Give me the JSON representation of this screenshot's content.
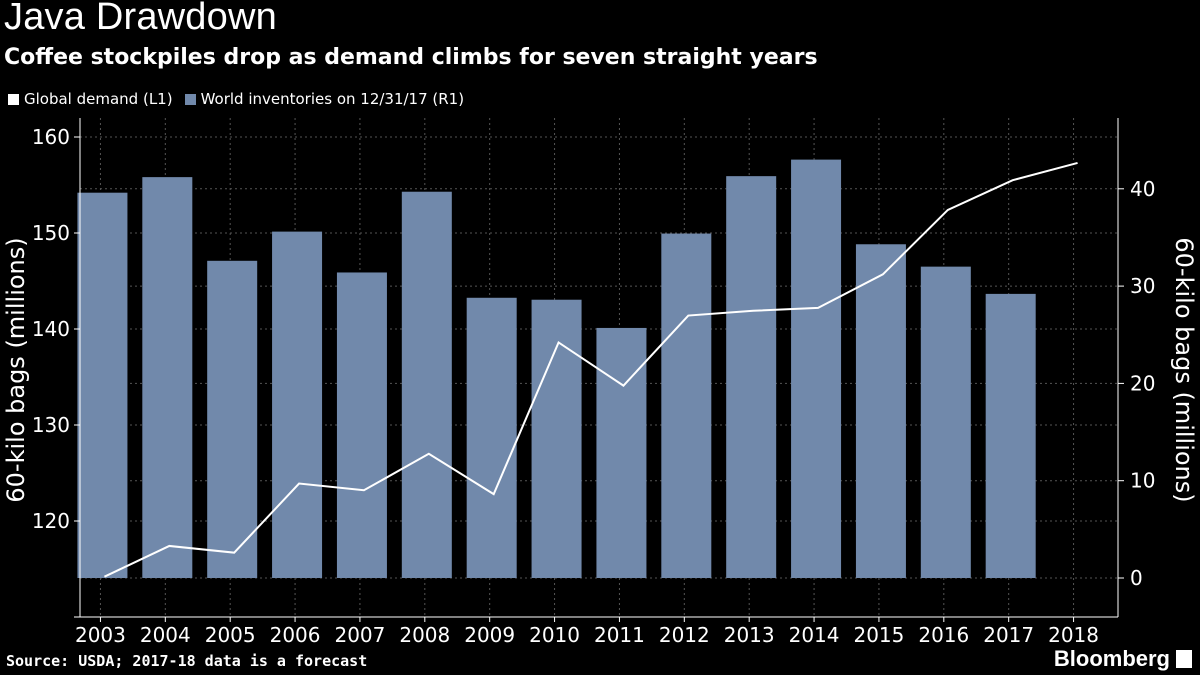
{
  "header": {
    "title": "Java Drawdown",
    "subtitle": "Coffee stockpiles drop as demand climbs for seven straight years"
  },
  "legend": [
    {
      "label": "Global demand (L1)",
      "color": "#ffffff"
    },
    {
      "label": "World inventories on 12/31/17 (R1)",
      "color": "#7189ab"
    }
  ],
  "footer": {
    "source": "Source: USDA; 2017-18 data is a forecast",
    "brand": "Bloomberg"
  },
  "chart_data": {
    "type": "bar+line",
    "title": "Java Drawdown",
    "categories": [
      "2003",
      "2004",
      "2005",
      "2006",
      "2007",
      "2008",
      "2009",
      "2010",
      "2011",
      "2012",
      "2013",
      "2014",
      "2015",
      "2016",
      "2017",
      "2018"
    ],
    "left_axis": {
      "label": "60-kilo bags (millions)",
      "ticks": [
        120,
        130,
        140,
        150,
        160
      ],
      "ylim": [
        114.2,
        160
      ]
    },
    "right_axis": {
      "label": "60-kilo bags (millions)",
      "ticks": [
        0,
        10,
        20,
        30,
        40
      ],
      "ylim": [
        0,
        45.5
      ]
    },
    "series": [
      {
        "name": "World inventories on 12/31/17 (R1)",
        "type": "bar",
        "axis": "right",
        "color": "#7189ab",
        "values": [
          39.6,
          41.2,
          32.6,
          35.6,
          31.4,
          39.7,
          28.8,
          28.6,
          25.7,
          35.4,
          41.3,
          43.0,
          34.3,
          32.0,
          29.2,
          null
        ]
      },
      {
        "name": "Global demand (L1)",
        "type": "line",
        "axis": "left",
        "color": "#ffffff",
        "values": [
          114.2,
          117.4,
          116.7,
          123.9,
          123.2,
          127.0,
          122.8,
          138.6,
          134.1,
          141.4,
          141.9,
          142.2,
          145.7,
          152.4,
          155.5,
          157.3
        ]
      }
    ],
    "grid": true
  },
  "colors": {
    "background": "#000000",
    "bar": "#7189ab",
    "line": "#ffffff",
    "grid": "#555555"
  }
}
